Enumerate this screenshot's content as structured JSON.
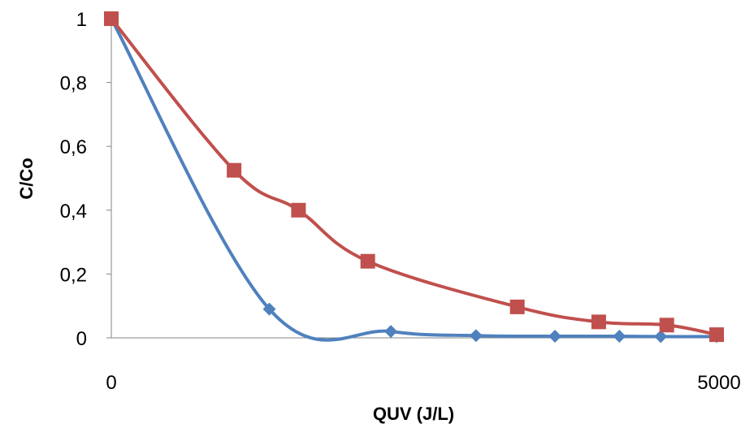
{
  "chart_data": {
    "type": "line",
    "title": "",
    "xlabel": "QUV (J/L)",
    "ylabel": "C/Co",
    "xlim": [
      0,
      5000
    ],
    "ylim": [
      0,
      1
    ],
    "x_tick_labels": [
      "0",
      "5000"
    ],
    "y_tick_labels": [
      "0",
      "0,2",
      "0,4",
      "0,6",
      "0,8",
      "1"
    ],
    "grid": false,
    "legend": "none",
    "smoothed": true,
    "series": [
      {
        "color": "#4F81BD",
        "marker": "diamond",
        "x": [
          0,
          1300,
          2300,
          3000,
          3650,
          4180,
          4520,
          4980
        ],
        "y": [
          1,
          0.09,
          0.02,
          0.007,
          0.005,
          0.005,
          0.004,
          0.004
        ]
      },
      {
        "color": "#C0504D",
        "marker": "square",
        "x": [
          0,
          1010,
          1540,
          2110,
          3340,
          4010,
          4570,
          4980
        ],
        "y": [
          1,
          0.525,
          0.4,
          0.24,
          0.097,
          0.05,
          0.04,
          0.01
        ]
      }
    ]
  }
}
